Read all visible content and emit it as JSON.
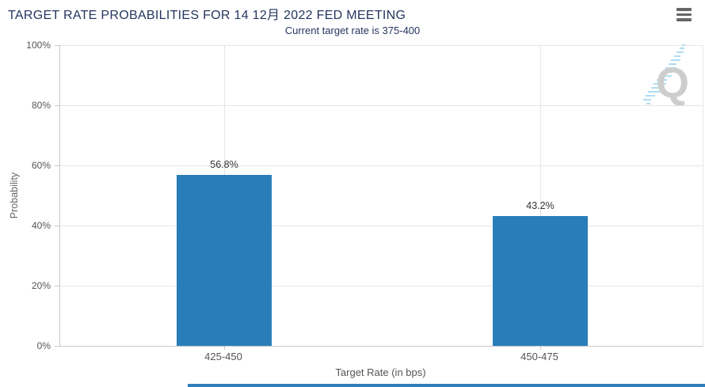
{
  "chart_data": {
    "type": "bar",
    "title": "TARGET RATE PROBABILITIES FOR 14 12月 2022 FED MEETING",
    "subtitle": "Current target rate is 375-400",
    "categories": [
      "425-450",
      "450-475"
    ],
    "values": [
      56.8,
      43.2
    ],
    "data_labels": [
      "56.8%",
      "43.2%"
    ],
    "xlabel": "Target Rate (in bps)",
    "ylabel": "Probability",
    "ylim": [
      0,
      100
    ],
    "ytick_labels": [
      "100%",
      "80%",
      "60%",
      "40%",
      "20%",
      "0%"
    ],
    "grid": true,
    "legend": "none",
    "bar_color": "#297EBA"
  },
  "icons": {
    "context_menu": "hamburger-menu-icon",
    "watermark": "q-logo-watermark"
  },
  "watermark_letter": "Q",
  "colors": {
    "bar": "#297EBA",
    "title_text": "#25355F",
    "grid": "#E6E6E6",
    "axis_line": "#C9C9C9",
    "tick_text": "#555555",
    "data_label_text": "#333333",
    "watermark_blue": "#AADCF2",
    "watermark_gray": "#CBCBCB",
    "bottom_bar": "#2E7FBC"
  }
}
